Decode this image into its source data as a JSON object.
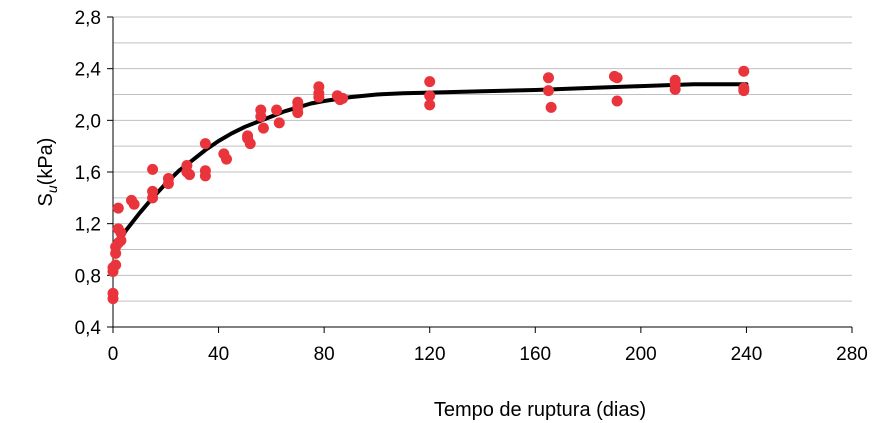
{
  "chart_data": {
    "type": "scatter",
    "xlabel": "Tempo de ruptura (dias)",
    "ylabel_main": "S",
    "ylabel_sub": "u",
    "ylabel_unit": "(kPa)",
    "xlim": [
      0,
      280
    ],
    "ylim": [
      0.4,
      2.8
    ],
    "x_ticks": [
      0,
      40,
      80,
      120,
      160,
      200,
      240,
      280
    ],
    "y_ticks": [
      0.4,
      0.8,
      1.2,
      1.6,
      2.0,
      2.4,
      2.8
    ],
    "x_tick_labels": [
      "0",
      "40",
      "80",
      "120",
      "160",
      "200",
      "240",
      "280"
    ],
    "y_tick_labels": [
      "0,4",
      "0,8",
      "1,2",
      "1,6",
      "2,0",
      "2,4",
      "2,8"
    ],
    "grid": "horizontal",
    "colors": {
      "points": "#e8343a",
      "curve": "#000000",
      "grid": "#c0c0c0",
      "axis": "#000000"
    },
    "series": [
      {
        "kind": "scatter",
        "x": [
          0,
          0,
          0,
          0,
          1,
          1,
          1,
          2,
          2,
          2,
          3,
          3,
          7,
          8,
          15,
          15,
          15,
          21,
          21,
          28,
          28,
          29,
          35,
          35,
          35,
          42,
          43,
          51,
          51,
          52,
          56,
          56,
          57,
          62,
          63,
          70,
          70,
          70,
          78,
          78,
          78,
          85,
          86,
          87,
          120,
          120,
          120,
          165,
          165,
          166,
          190,
          191,
          191,
          213,
          213,
          213,
          239,
          239,
          239
        ],
        "y": [
          0.62,
          0.66,
          0.83,
          0.86,
          0.88,
          0.97,
          1.02,
          1.32,
          1.16,
          1.05,
          1.13,
          1.07,
          1.38,
          1.35,
          1.62,
          1.45,
          1.4,
          1.55,
          1.51,
          1.65,
          1.6,
          1.58,
          1.82,
          1.61,
          1.57,
          1.74,
          1.7,
          1.88,
          1.86,
          1.82,
          2.08,
          2.03,
          1.94,
          2.08,
          1.98,
          2.14,
          2.1,
          2.06,
          2.26,
          2.21,
          2.18,
          2.19,
          2.16,
          2.17,
          2.3,
          2.19,
          2.12,
          2.33,
          2.23,
          2.1,
          2.34,
          2.33,
          2.15,
          2.31,
          2.28,
          2.24,
          2.38,
          2.25,
          2.23
        ]
      },
      {
        "kind": "line",
        "x": [
          0,
          2,
          5,
          10,
          15,
          20,
          25,
          30,
          35,
          40,
          45,
          50,
          55,
          60,
          65,
          70,
          75,
          80,
          90,
          100,
          110,
          120,
          140,
          160,
          180,
          200,
          220,
          240
        ],
        "y": [
          0.98,
          1.05,
          1.15,
          1.28,
          1.4,
          1.51,
          1.61,
          1.69,
          1.77,
          1.84,
          1.9,
          1.95,
          1.99,
          2.03,
          2.07,
          2.1,
          2.13,
          2.15,
          2.18,
          2.2,
          2.21,
          2.215,
          2.225,
          2.235,
          2.25,
          2.265,
          2.28,
          2.28
        ]
      }
    ]
  }
}
